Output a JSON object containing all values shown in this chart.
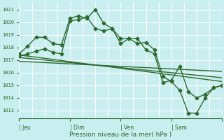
{
  "background_color": "#c8eef0",
  "grid_color": "#ffffff",
  "line_color": "#2d6a2d",
  "marker": "D",
  "marker_size": 2.5,
  "line_width": 1.0,
  "ylabel_ticks": [
    1013,
    1014,
    1015,
    1016,
    1017,
    1018,
    1019,
    1020,
    1021
  ],
  "ylim": [
    1012.4,
    1021.6
  ],
  "xlim": [
    0,
    96
  ],
  "x_tick_positions": [
    0,
    24,
    48,
    72,
    96
  ],
  "x_tick_labels": [
    "| Jeu",
    "| Dim",
    "| Ven",
    "| Sam",
    ""
  ],
  "xlabel": "Pression niveau de la mer( hPa )",
  "series1_x": [
    0,
    4,
    8,
    12,
    16,
    20,
    24,
    28,
    32,
    36,
    40,
    44,
    48,
    52,
    56,
    60,
    64,
    68,
    72,
    76,
    80,
    84,
    88,
    92,
    96
  ],
  "series1_y": [
    1017.5,
    1018.1,
    1018.8,
    1018.8,
    1018.3,
    1018.2,
    1020.3,
    1020.5,
    1020.3,
    1021.0,
    1019.9,
    1019.5,
    1018.7,
    1018.7,
    1018.3,
    1018.4,
    1017.8,
    1015.7,
    1015.3,
    1014.6,
    1012.8,
    1012.8,
    1014.0,
    1014.8,
    1015.0
  ],
  "series2_x": [
    0,
    4,
    8,
    12,
    16,
    20,
    24,
    28,
    32,
    36,
    40,
    44,
    48,
    52,
    56,
    60,
    64,
    68,
    72,
    76,
    80,
    84,
    88,
    92,
    96
  ],
  "series2_y": [
    1017.3,
    1017.5,
    1017.7,
    1017.9,
    1017.6,
    1017.5,
    1020.1,
    1020.2,
    1020.4,
    1019.5,
    1019.3,
    1019.5,
    1018.3,
    1018.7,
    1018.7,
    1017.8,
    1017.5,
    1015.2,
    1015.4,
    1016.5,
    1014.5,
    1014.0,
    1014.3,
    1014.8,
    1015.0
  ],
  "series3_x": [
    0,
    96
  ],
  "series3_y": [
    1017.4,
    1015.3
  ],
  "series4_x": [
    0,
    96
  ],
  "series4_y": [
    1017.2,
    1015.6
  ],
  "series5_x": [
    0,
    96
  ],
  "series5_y": [
    1016.9,
    1016.1
  ]
}
